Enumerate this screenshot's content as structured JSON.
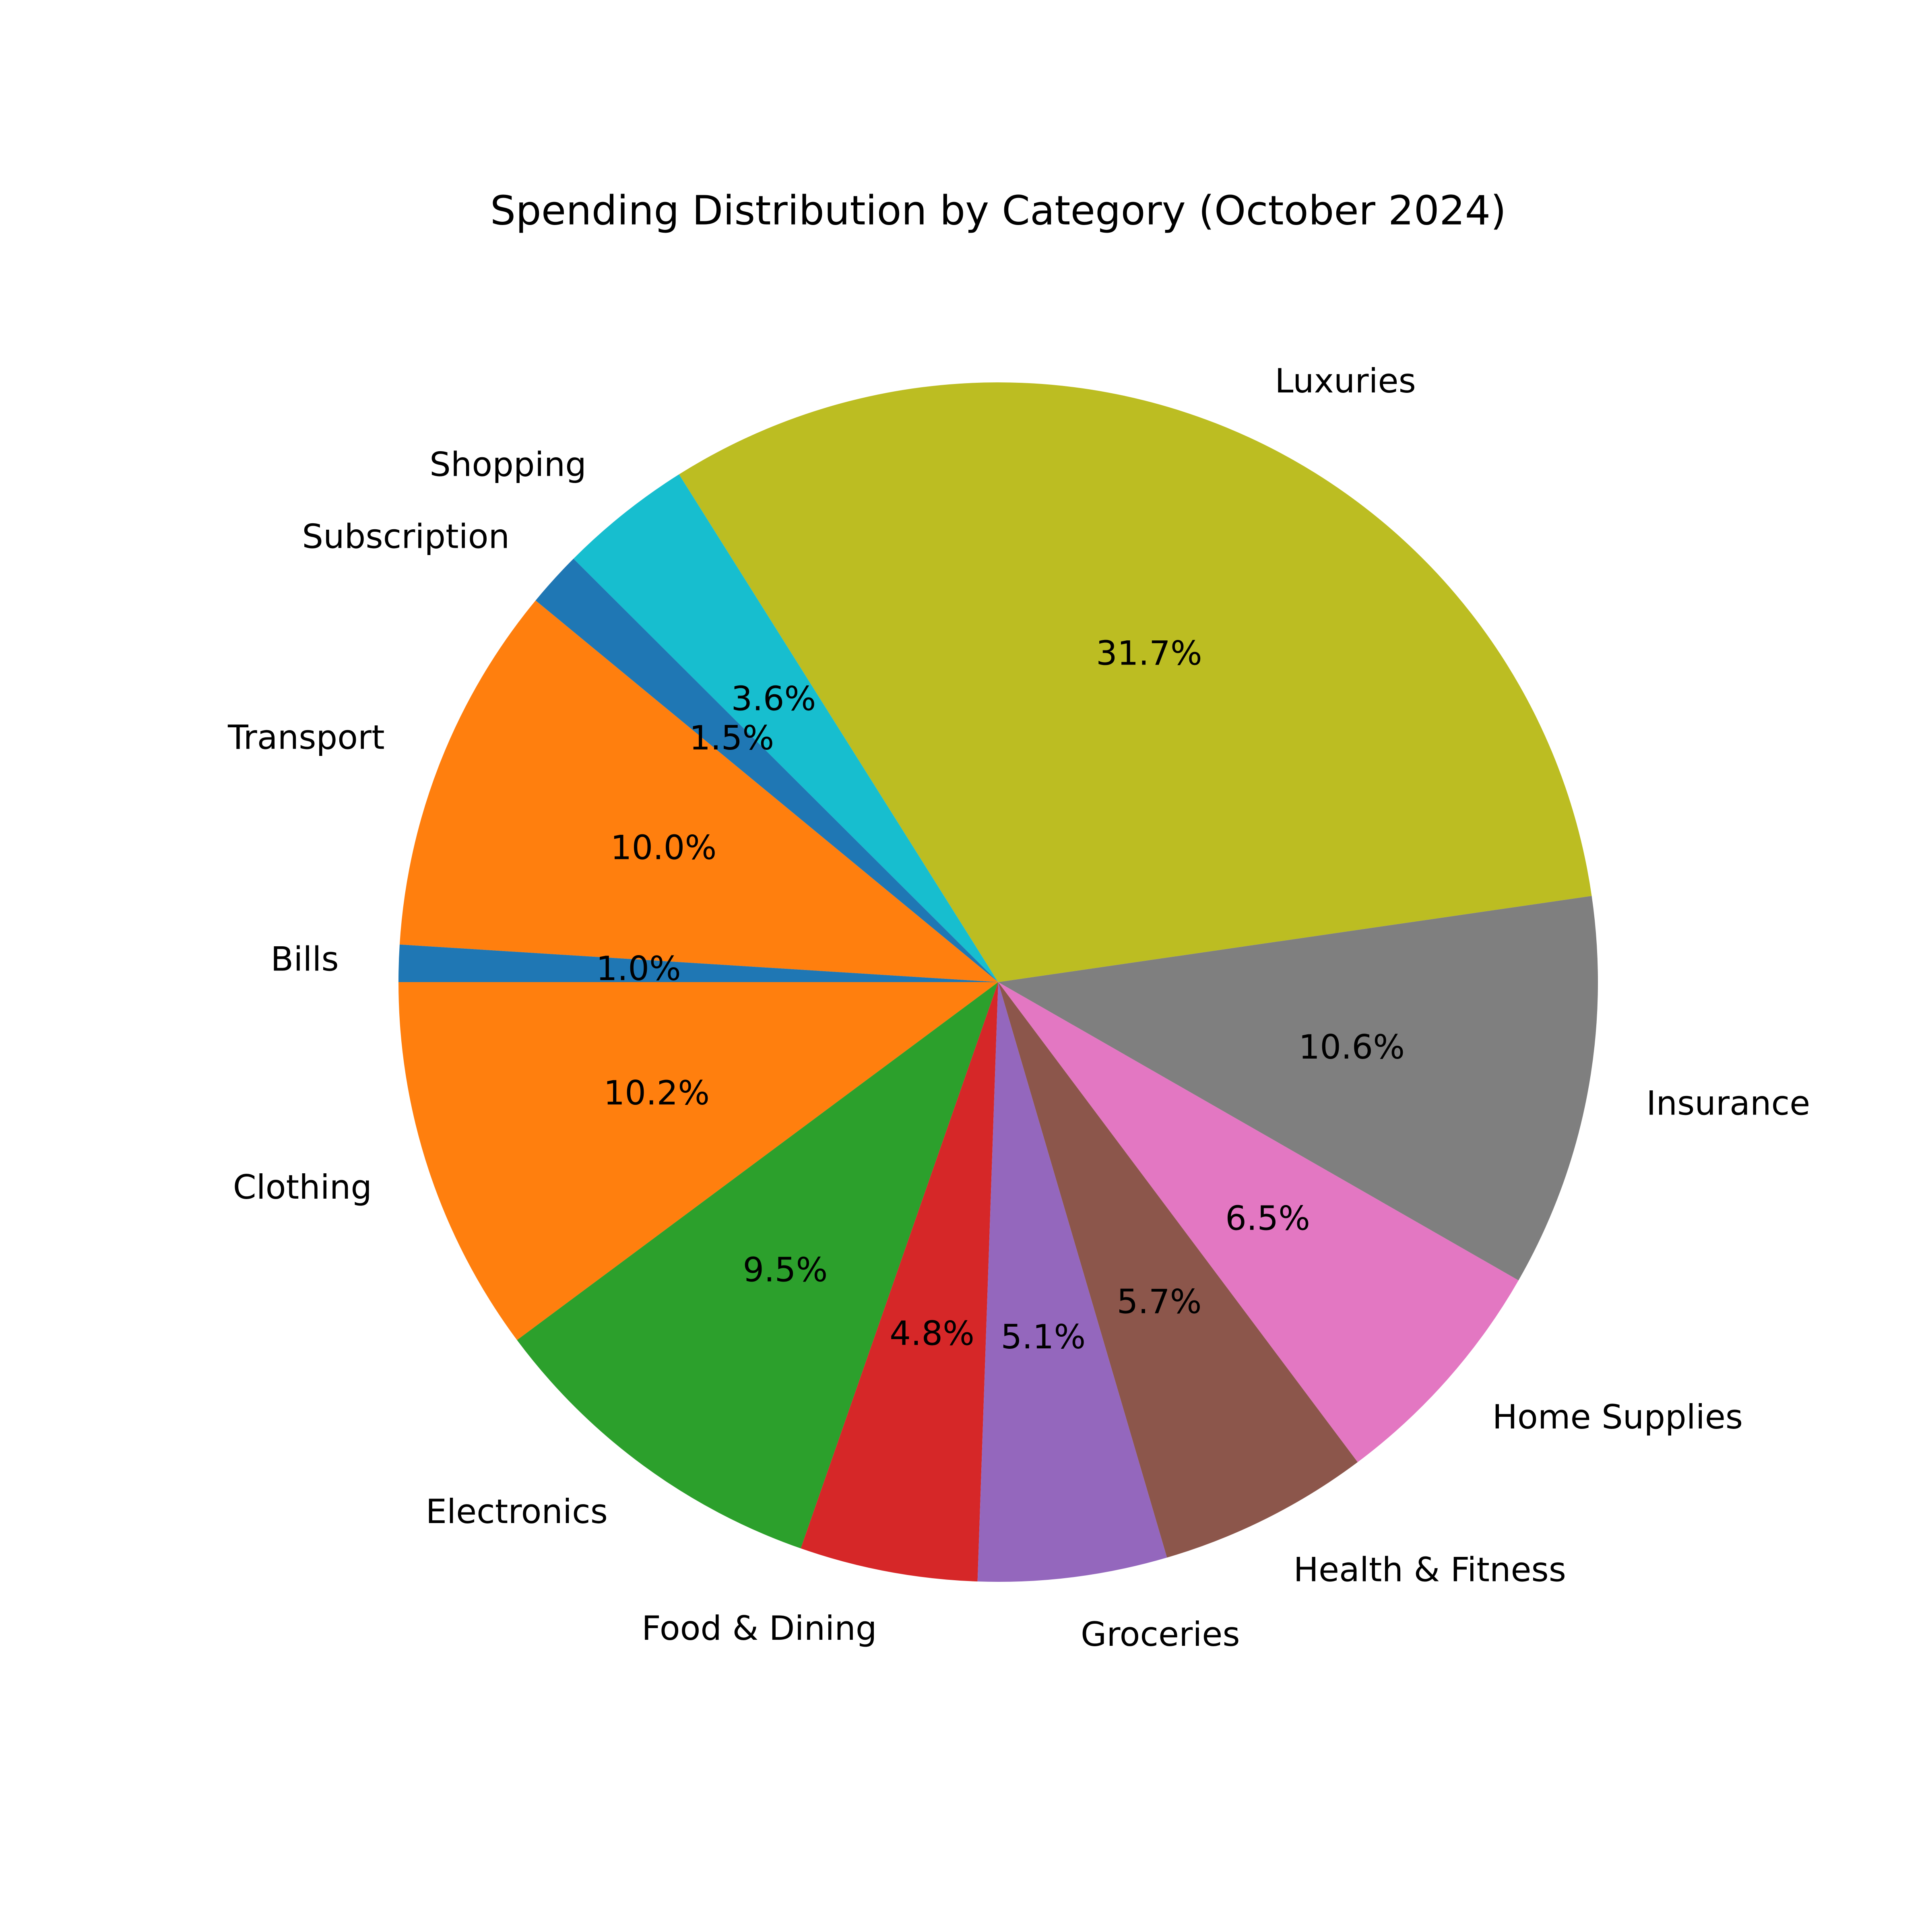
{
  "chart_data": {
    "type": "pie",
    "title": "Spending Distribution by Category (October 2024)",
    "start_angle_deg": 180,
    "direction": "counterclockwise",
    "slices": [
      {
        "label": "Clothing",
        "value": 10.2,
        "pct_label": "10.2%",
        "color": "#ff7f0e"
      },
      {
        "label": "Electronics",
        "value": 9.5,
        "pct_label": "9.5%",
        "color": "#2ca02c"
      },
      {
        "label": "Food & Dining",
        "value": 4.8,
        "pct_label": "4.8%",
        "color": "#d62728"
      },
      {
        "label": "Groceries",
        "value": 5.1,
        "pct_label": "5.1%",
        "color": "#9467bd"
      },
      {
        "label": "Health & Fitness",
        "value": 5.7,
        "pct_label": "5.7%",
        "color": "#8c564b"
      },
      {
        "label": "Home Supplies",
        "value": 6.5,
        "pct_label": "6.5%",
        "color": "#e377c2"
      },
      {
        "label": "Insurance",
        "value": 10.6,
        "pct_label": "10.6%",
        "color": "#7f7f7f"
      },
      {
        "label": "Luxuries",
        "value": 31.7,
        "pct_label": "31.7%",
        "color": "#bcbd22"
      },
      {
        "label": "Shopping",
        "value": 3.6,
        "pct_label": "3.6%",
        "color": "#17becf"
      },
      {
        "label": "Subscription",
        "value": 1.5,
        "pct_label": "1.5%",
        "color": "#1f77b4"
      },
      {
        "label": "Transport",
        "value": 10.0,
        "pct_label": "10.0%",
        "color": "#ff7f0e"
      },
      {
        "label": "Bills",
        "value": 1.0,
        "pct_label": "1.0%",
        "color": "#1f77b4"
      }
    ]
  }
}
